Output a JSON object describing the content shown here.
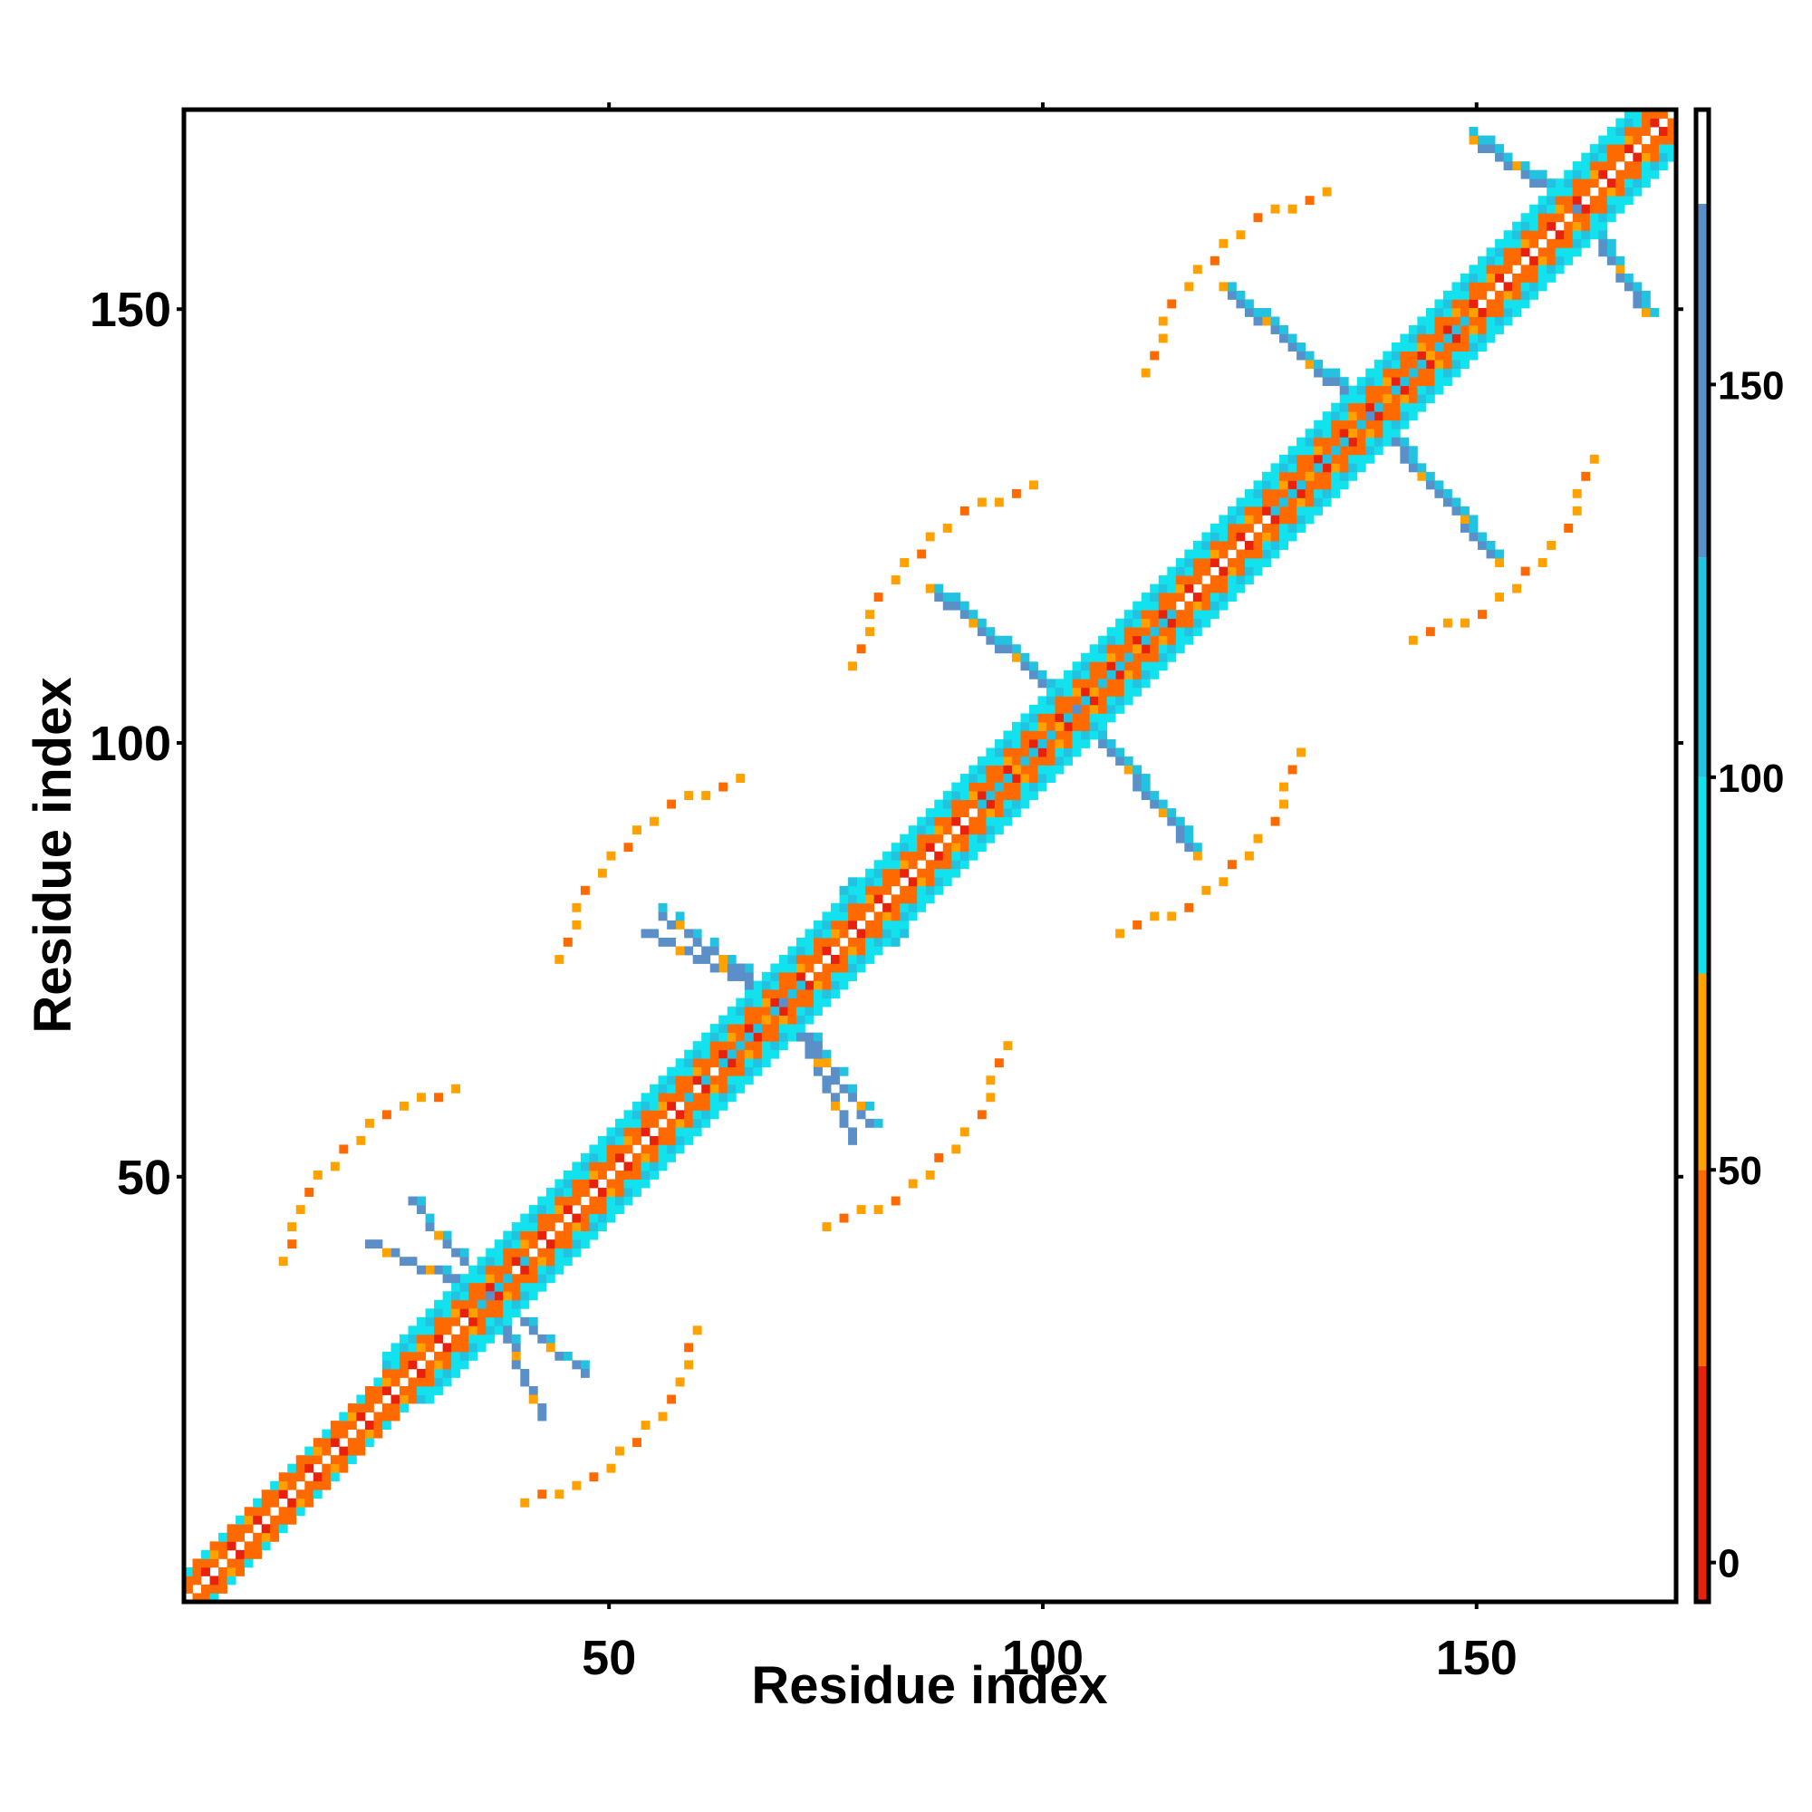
{
  "chart_data": {
    "type": "heatmap",
    "title": "",
    "xlabel": "Residue index",
    "ylabel": "Residue index",
    "xlim": [
      1,
      173
    ],
    "ylim": [
      1,
      173
    ],
    "xticks": [
      50,
      100,
      150
    ],
    "yticks": [
      50,
      100,
      150
    ],
    "colorbar": {
      "ticks": [
        0,
        50,
        100,
        150
      ],
      "range": [
        -5,
        185
      ],
      "bands": [
        {
          "from": -5,
          "to": 25,
          "color": "#e8210c"
        },
        {
          "from": 25,
          "to": 50,
          "color": "#ff6a00"
        },
        {
          "from": 50,
          "to": 75,
          "color": "#ffa200"
        },
        {
          "from": 75,
          "to": 100,
          "color": "#12e2ee"
        },
        {
          "from": 100,
          "to": 128,
          "color": "#22c2e0"
        },
        {
          "from": 128,
          "to": 173,
          "color": "#5a8fc8"
        },
        {
          "from": 173,
          "to": 185,
          "color": "#ffffff"
        }
      ]
    },
    "diagonal_band_halfwidth": 5,
    "symmetric": true,
    "off_diagonal_motifs": [
      {
        "center": [
          36,
          36
        ],
        "arms": [
          {
            "from": [
              36,
              36
            ],
            "to": [
              22,
              42
            ],
            "color": "#5a8fc8"
          },
          {
            "from": [
              36,
              36
            ],
            "to": [
              47,
              27
            ],
            "color": "#5a8fc8"
          },
          {
            "from": [
              36,
              36
            ],
            "to": [
              44,
              48
            ],
            "color": "#22c2e0"
          },
          {
            "from": [
              36,
              36
            ],
            "to": [
              26,
              24
            ],
            "color": "#22c2e0"
          }
        ],
        "arcs": [
          {
            "center": [
              36,
              36
            ],
            "radius": 24,
            "from_deg": 100,
            "to_deg": 170,
            "color": "#ffa200"
          },
          {
            "center": [
              36,
              36
            ],
            "radius": 24,
            "from_deg": 280,
            "to_deg": 350,
            "color": "#12e2ee"
          }
        ]
      },
      {
        "center": [
          70,
          70
        ],
        "arms": [
          {
            "from": [
              70,
              70
            ],
            "to": [
              54,
              78
            ],
            "color": "#5a8fc8"
          },
          {
            "from": [
              70,
              70
            ],
            "to": [
              80,
              56
            ],
            "color": "#5a8fc8"
          },
          {
            "from": [
              70,
              70
            ],
            "to": [
              78,
              84
            ],
            "color": "#22c2e0"
          },
          {
            "from": [
              70,
              70
            ],
            "to": [
              57,
              58
            ],
            "color": "#22c2e0"
          }
        ],
        "arcs": [
          {
            "center": [
              70,
              70
            ],
            "radius": 26,
            "from_deg": 100,
            "to_deg": 170,
            "color": "#ffa200"
          },
          {
            "center": [
              70,
              70
            ],
            "radius": 26,
            "from_deg": 280,
            "to_deg": 350,
            "color": "#12e2ee"
          }
        ]
      },
      {
        "center": [
          104,
          104
        ],
        "arms": [
          {
            "from": [
              104,
              104
            ],
            "to": [
              87,
              118
            ],
            "color": "#5a8fc8"
          },
          {
            "from": [
              104,
              104
            ],
            "to": [
              118,
              87
            ],
            "color": "#5a8fc8"
          },
          {
            "from": [
              104,
              104
            ],
            "to": [
              115,
              115
            ],
            "color": "#22c2e0"
          },
          {
            "from": [
              104,
              104
            ],
            "to": [
              93,
              93
            ],
            "color": "#22c2e0"
          }
        ],
        "arcs": [
          {
            "center": [
              104,
              104
            ],
            "radius": 26,
            "from_deg": 100,
            "to_deg": 170,
            "color": "#ffa200"
          },
          {
            "center": [
              104,
              104
            ],
            "radius": 26,
            "from_deg": 280,
            "to_deg": 350,
            "color": "#12e2ee"
          }
        ]
      },
      {
        "center": [
          138,
          138
        ],
        "arms": [
          {
            "from": [
              138,
              138
            ],
            "to": [
              121,
              153
            ],
            "color": "#5a8fc8"
          },
          {
            "from": [
              138,
              138
            ],
            "to": [
              153,
              121
            ],
            "color": "#5a8fc8"
          },
          {
            "from": [
              138,
              138
            ],
            "to": [
              150,
              150
            ],
            "color": "#22c2e0"
          },
          {
            "from": [
              138,
              138
            ],
            "to": [
              127,
              127
            ],
            "color": "#22c2e0"
          }
        ],
        "arcs": [
          {
            "center": [
              138,
              138
            ],
            "radius": 26,
            "from_deg": 100,
            "to_deg": 170,
            "color": "#ffa200"
          },
          {
            "center": [
              138,
              138
            ],
            "radius": 26,
            "from_deg": 280,
            "to_deg": 350,
            "color": "#12e2ee"
          }
        ]
      },
      {
        "center": [
          162,
          162
        ],
        "arms": [
          {
            "from": [
              162,
              162
            ],
            "to": [
              150,
              170
            ],
            "color": "#5a8fc8"
          },
          {
            "from": [
              162,
              162
            ],
            "to": [
              170,
              150
            ],
            "color": "#5a8fc8"
          }
        ],
        "arcs": []
      }
    ]
  }
}
